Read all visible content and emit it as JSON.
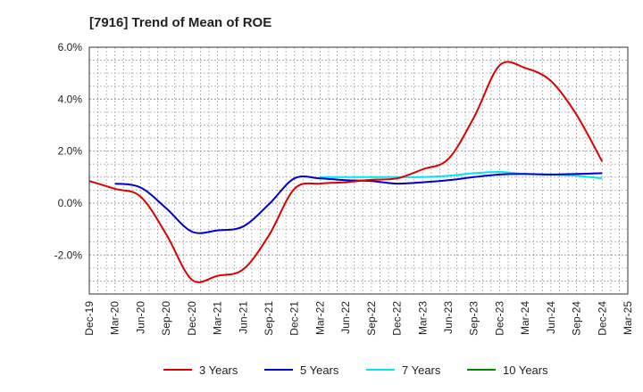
{
  "chart_data": {
    "type": "line",
    "title": "[7916]  Trend of Mean of ROE",
    "xlabel": "",
    "ylabel": "",
    "x": [
      "Dec-19",
      "Mar-20",
      "Jun-20",
      "Sep-20",
      "Dec-20",
      "Mar-21",
      "Jun-21",
      "Sep-21",
      "Dec-21",
      "Mar-22",
      "Jun-22",
      "Sep-22",
      "Dec-22",
      "Mar-23",
      "Jun-23",
      "Sep-23",
      "Dec-23",
      "Mar-24",
      "Jun-24",
      "Sep-24",
      "Dec-24",
      "Mar-25"
    ],
    "ylim": [
      -3.5,
      6.0
    ],
    "yticks": [
      -2.0,
      0.0,
      2.0,
      4.0,
      6.0
    ],
    "ytick_labels": [
      "-2.0%",
      "0.0%",
      "2.0%",
      "4.0%",
      "6.0%"
    ],
    "grid": true,
    "legend_position": "bottom",
    "series": [
      {
        "name": "3 Years",
        "color": "#dd0000",
        "values": [
          0.85,
          0.55,
          0.25,
          -1.2,
          -2.95,
          -2.8,
          -2.55,
          -1.25,
          0.55,
          0.75,
          0.8,
          0.9,
          0.95,
          1.3,
          1.7,
          3.3,
          5.3,
          5.2,
          4.7,
          3.4,
          1.6,
          null
        ]
      },
      {
        "name": "5 Years",
        "color": "#0000cc",
        "values": [
          null,
          0.75,
          0.6,
          -0.2,
          -1.1,
          -1.05,
          -0.9,
          -0.05,
          0.95,
          0.95,
          0.88,
          0.85,
          0.75,
          0.8,
          0.88,
          1.0,
          1.1,
          1.12,
          1.1,
          1.12,
          1.15,
          null
        ]
      },
      {
        "name": "7 Years",
        "color": "#00e5ee",
        "values": [
          null,
          null,
          null,
          null,
          null,
          null,
          null,
          null,
          null,
          1.0,
          1.0,
          1.0,
          1.0,
          1.0,
          1.05,
          1.15,
          1.2,
          1.12,
          1.1,
          1.05,
          0.95,
          null
        ]
      },
      {
        "name": "10 Years",
        "color": "#008800",
        "values": [
          null,
          null,
          null,
          null,
          null,
          null,
          null,
          null,
          null,
          null,
          null,
          null,
          null,
          null,
          null,
          null,
          null,
          null,
          null,
          null,
          null,
          null
        ]
      }
    ]
  }
}
